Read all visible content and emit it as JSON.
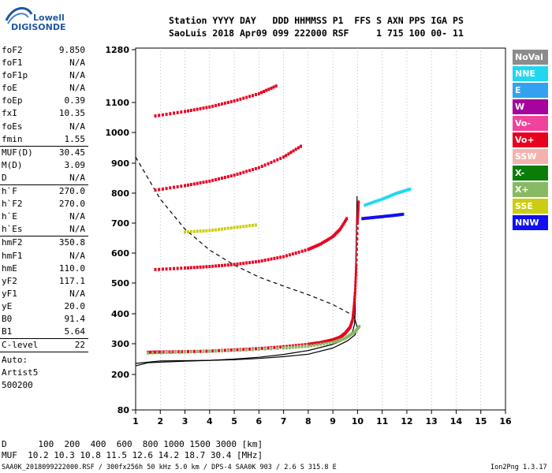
{
  "logo": {
    "line1": "Lowell",
    "line2": "DIGISONDE"
  },
  "header": {
    "row1": "Station YYYY DAY   DDD HHMMSS P1  FFS S AXN PPS IGA PS",
    "row2": "SaoLuis 2018 Apr09 099 222000 RSF     1 715 100 00- 11"
  },
  "params_group1": [
    {
      "name": "foF2",
      "value": "9.850"
    },
    {
      "name": "foF1",
      "value": "N/A"
    },
    {
      "name": "foF1p",
      "value": "N/A"
    },
    {
      "name": "foE",
      "value": "N/A"
    },
    {
      "name": "foEp",
      "value": "0.39"
    },
    {
      "name": "fxI",
      "value": "10.35"
    },
    {
      "name": "foEs",
      "value": "N/A"
    },
    {
      "name": "fmin",
      "value": "1.55"
    }
  ],
  "params_group2": [
    {
      "name": "MUF(D)",
      "value": "30.45"
    },
    {
      "name": "M(D)",
      "value": "3.09"
    },
    {
      "name": "D",
      "value": "N/A"
    }
  ],
  "params_group3": [
    {
      "name": "h`F",
      "value": "270.0"
    },
    {
      "name": "h`F2",
      "value": "270.0"
    },
    {
      "name": "h`E",
      "value": "N/A"
    },
    {
      "name": "h`Es",
      "value": "N/A"
    }
  ],
  "params_group4": [
    {
      "name": "hmF2",
      "value": "350.8"
    },
    {
      "name": "hmF1",
      "value": "N/A"
    },
    {
      "name": "hmE",
      "value": "110.0"
    },
    {
      "name": "yF2",
      "value": "117.1"
    },
    {
      "name": "yF1",
      "value": "N/A"
    },
    {
      "name": "yE",
      "value": "20.0"
    },
    {
      "name": "B0",
      "value": "91.4"
    },
    {
      "name": "B1",
      "value": "5.64"
    }
  ],
  "params_group5": [
    {
      "name": "C-level",
      "value": "22"
    }
  ],
  "auto_block": {
    "line1": "Auto:",
    "line2": "Artist5",
    "line3": "500200"
  },
  "legend": [
    {
      "label": "NoVal",
      "color": "#8c8c8c"
    },
    {
      "label": "NNE",
      "color": "#1fd8ef"
    },
    {
      "label": "E",
      "color": "#33a1ef"
    },
    {
      "label": "W",
      "color": "#a6039f"
    },
    {
      "label": "Vo-",
      "color": "#f0439b"
    },
    {
      "label": "Vo+",
      "color": "#e8001f"
    },
    {
      "label": "SSW",
      "color": "#f4b2ad"
    },
    {
      "label": "X-",
      "color": "#0a7d07"
    },
    {
      "label": "X+",
      "color": "#8ab963"
    },
    {
      "label": "SSE",
      "color": "#cccc12"
    },
    {
      "label": "NNW",
      "color": "#1010f0"
    }
  ],
  "footer": {
    "d_row": "D      100  200  400  600  800 1000 1500 3000 [km]",
    "muf_row": "MUF  10.2 10.3 10.8 11.5 12.6 14.2 18.7 30.4 [MHz]",
    "file_info": "SAA0K_2018099222000.RSF / 300fx256h 50 kHz 5.0 km / DPS-4 SAA0K 903 / 2.6 S 315.8 E",
    "version": "Ion2Png 1.3.17"
  },
  "chart_data": {
    "type": "scatter",
    "x_ticks": [
      "1",
      "2",
      "3",
      "4",
      "5",
      "6",
      "7",
      "8",
      "9",
      "10",
      "11",
      "12",
      "13",
      "14",
      "15",
      "16"
    ],
    "y_ticks": [
      "80",
      "200",
      "300",
      "400",
      "500",
      "600",
      "700",
      "800",
      "900",
      "1000",
      "1100",
      "1280"
    ],
    "xlim": [
      1,
      16
    ],
    "ylim": [
      80,
      1280
    ],
    "y_scale": "ionogram (approx. log)",
    "grid": "dotted vertical",
    "series": [
      {
        "name": "Vo+",
        "color": "#e8001f",
        "trace_1hop": [
          [
            1.5,
            272
          ],
          [
            2,
            273
          ],
          [
            3,
            274
          ],
          [
            4,
            276
          ],
          [
            5,
            280
          ],
          [
            6,
            284
          ],
          [
            7,
            290
          ],
          [
            8,
            298
          ],
          [
            8.5,
            304
          ],
          [
            9,
            313
          ],
          [
            9.3,
            322
          ],
          [
            9.5,
            335
          ],
          [
            9.7,
            355
          ],
          [
            9.8,
            380
          ],
          [
            9.85,
            420
          ],
          [
            9.9,
            470
          ],
          [
            9.95,
            560
          ],
          [
            10.0,
            700
          ],
          [
            10.05,
            780
          ]
        ],
        "trace_2hop": [
          [
            1.8,
            545
          ],
          [
            3,
            550
          ],
          [
            4,
            555
          ],
          [
            5,
            562
          ],
          [
            6,
            572
          ],
          [
            7,
            588
          ],
          [
            8,
            612
          ],
          [
            8.5,
            630
          ],
          [
            9,
            655
          ],
          [
            9.3,
            680
          ],
          [
            9.6,
            720
          ]
        ],
        "trace_3hop": [
          [
            1.8,
            810
          ],
          [
            3,
            825
          ],
          [
            4,
            840
          ],
          [
            5,
            860
          ],
          [
            6,
            885
          ],
          [
            7,
            920
          ],
          [
            7.8,
            960
          ]
        ],
        "trace_4hop": [
          [
            1.8,
            1055
          ],
          [
            3,
            1070
          ],
          [
            4,
            1085
          ],
          [
            5,
            1105
          ],
          [
            6,
            1130
          ],
          [
            6.8,
            1160
          ]
        ]
      },
      {
        "name": "X+",
        "color": "#8ab963",
        "trace_1hop": [
          [
            1.5,
            270
          ],
          [
            3,
            273
          ],
          [
            5,
            278
          ],
          [
            7,
            286
          ],
          [
            8,
            292
          ],
          [
            9,
            304
          ],
          [
            9.5,
            318
          ],
          [
            9.9,
            340
          ],
          [
            10.1,
            360
          ]
        ]
      },
      {
        "name": "SSE",
        "color": "#cccc12",
        "trace": [
          [
            3,
            670
          ],
          [
            4,
            675
          ],
          [
            5,
            685
          ],
          [
            6,
            695
          ]
        ]
      },
      {
        "name": "NNW",
        "color": "#1010f0",
        "trace": [
          [
            10.2,
            715
          ],
          [
            10.8,
            720
          ],
          [
            11.4,
            725
          ],
          [
            11.9,
            730
          ]
        ]
      },
      {
        "name": "NNE",
        "color": "#1fd8ef",
        "trace": [
          [
            10.3,
            760
          ],
          [
            11,
            780
          ],
          [
            11.6,
            800
          ],
          [
            12.2,
            815
          ]
        ]
      }
    ],
    "profile_curve": [
      [
        1,
        228
      ],
      [
        1.5,
        238
      ],
      [
        2,
        240
      ],
      [
        3,
        243
      ],
      [
        4,
        246
      ],
      [
        5,
        250
      ],
      [
        6,
        256
      ],
      [
        7,
        265
      ],
      [
        8,
        278
      ],
      [
        9,
        298
      ],
      [
        9.5,
        315
      ],
      [
        9.8,
        340
      ],
      [
        9.88,
        365
      ],
      [
        9.9,
        400
      ],
      [
        9.92,
        500
      ],
      [
        9.95,
        650
      ],
      [
        9.98,
        790
      ]
    ],
    "virtual_height_curve": [
      [
        1,
        236
      ],
      [
        2,
        244
      ],
      [
        4,
        246
      ],
      [
        5,
        248
      ],
      [
        6,
        252
      ],
      [
        7,
        258
      ],
      [
        8,
        266
      ],
      [
        9,
        286
      ],
      [
        9.6,
        310
      ],
      [
        9.9,
        330
      ],
      [
        10.0,
        350
      ],
      [
        9.9,
        380
      ],
      [
        9.8,
        405
      ]
    ],
    "muf_curve": [
      [
        1,
        920
      ],
      [
        2,
        780
      ],
      [
        3,
        680
      ],
      [
        4,
        610
      ],
      [
        5,
        560
      ],
      [
        6,
        520
      ],
      [
        7,
        490
      ],
      [
        8,
        462
      ],
      [
        9,
        430
      ],
      [
        9.7,
        400
      ]
    ]
  }
}
